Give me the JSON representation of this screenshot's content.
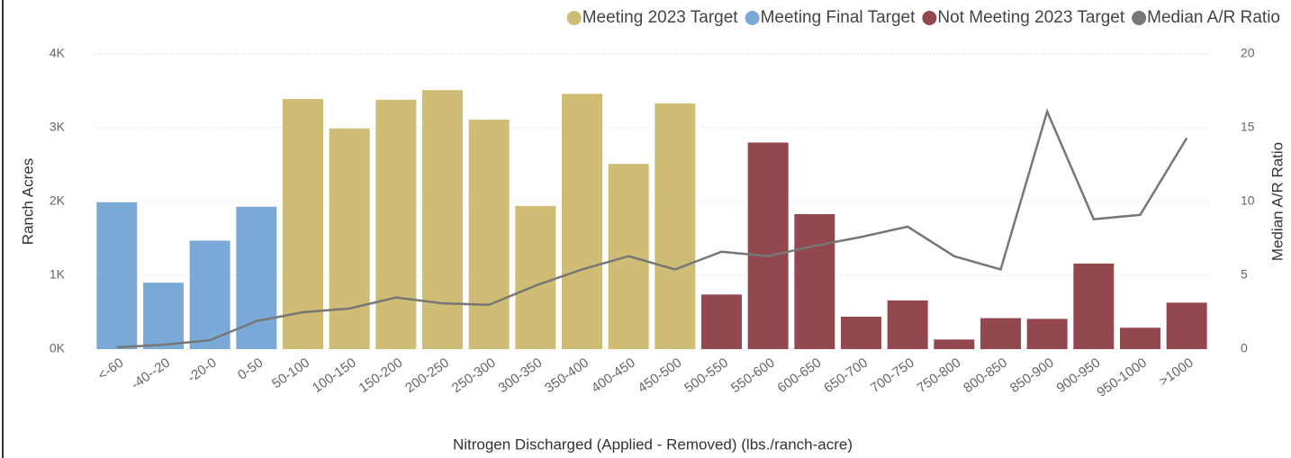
{
  "chart_data": {
    "type": "bar",
    "legend": "top-right",
    "grid": true,
    "x_label": "Nitrogen Discharged (Applied - Removed) (lbs./ranch-acre)",
    "y_label": "Ranch Acres",
    "y2_label": "Median A/R Ratio",
    "categories": [
      "<-60",
      "-40--20",
      "-20-0",
      "0-50",
      "50-100",
      "100-150",
      "150-200",
      "200-250",
      "250-300",
      "300-350",
      "350-400",
      "400-450",
      "450-500",
      "500-550",
      "550-600",
      "600-650",
      "650-700",
      "700-750",
      "750-800",
      "800-850",
      "850-900",
      "900-950",
      "950-1000",
      ">1000"
    ],
    "ylim": [
      0,
      4000
    ],
    "yticks": [
      {
        "value": 0,
        "label": "0K"
      },
      {
        "value": 1000,
        "label": "1K"
      },
      {
        "value": 2000,
        "label": "2K"
      },
      {
        "value": 3000,
        "label": "3K"
      },
      {
        "value": 4000,
        "label": "4K"
      }
    ],
    "y2lim": [
      0,
      20
    ],
    "y2ticks": [
      0,
      5,
      10,
      15,
      20
    ],
    "series": [
      {
        "name": "Meeting 2023 Target",
        "type": "bar",
        "color": "#cfbd75",
        "values": [
          null,
          null,
          null,
          null,
          3390,
          2990,
          3380,
          3510,
          3110,
          1940,
          3460,
          2510,
          3330,
          null,
          null,
          null,
          null,
          null,
          null,
          null,
          null,
          null,
          null,
          null
        ]
      },
      {
        "name": "Meeting Final Target",
        "type": "bar",
        "color": "#7aa9d8",
        "values": [
          1990,
          900,
          1470,
          1930,
          null,
          null,
          null,
          null,
          null,
          null,
          null,
          null,
          null,
          null,
          null,
          null,
          null,
          null,
          null,
          null,
          null,
          null,
          null,
          null
        ]
      },
      {
        "name": "Not Meeting 2023 Target",
        "type": "bar",
        "color": "#93474f",
        "values": [
          null,
          null,
          null,
          null,
          null,
          null,
          null,
          null,
          null,
          null,
          null,
          null,
          null,
          740,
          2800,
          1830,
          440,
          660,
          130,
          420,
          410,
          1160,
          290,
          630
        ]
      },
      {
        "name": "Median A/R Ratio",
        "type": "line",
        "axis": "y2",
        "color": "#777777",
        "values": [
          0.12,
          0.3,
          0.6,
          1.9,
          2.5,
          2.75,
          3.5,
          3.1,
          3.0,
          4.3,
          5.4,
          6.3,
          5.4,
          6.6,
          6.3,
          7.0,
          7.6,
          8.3,
          6.3,
          5.4,
          16.1,
          8.8,
          9.1,
          14.3
        ]
      }
    ]
  }
}
